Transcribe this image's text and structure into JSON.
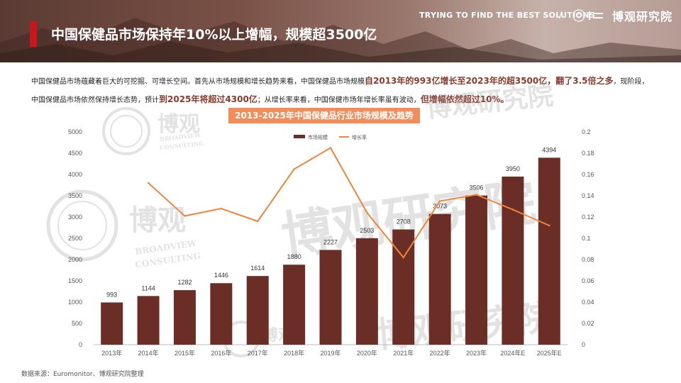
{
  "header": {
    "title": "中国保健品市场保持年10%以上增幅，规模超3500亿",
    "tagline": "TRYING TO FIND THE BEST SOLUTIONS",
    "slash": "/",
    "brand": "博观研究院"
  },
  "description": {
    "p1": "中国保健品市场蕴藏着巨大的可挖掘、可增长空间。首先从市场规模和增长趋势来看，中国保健品市场规模",
    "h1": "自2013年的993亿增长至2023年的超3500亿，翻了3.5倍之多",
    "p2": "，现阶段，中国保健品市场依然保持增长态势，预计",
    "h2": "到2025年将超过4300亿",
    "p3": "；从增长率来看，中国保健市场年增长率虽有波动，",
    "h3": "但增幅依然超过10%。"
  },
  "watermarks": {
    "large": "博观研究院",
    "logo_cn": "博观",
    "logo_en1": "BROADVIEW",
    "logo_en2": "CONSULTING"
  },
  "source": "数据来源：Euromonitor、博观研究院整理",
  "colors": {
    "bar": "#6b2e26",
    "line": "#f0843c",
    "title_bg": "#f18d5b",
    "highlight": "#8b3a2c"
  },
  "chart_data": {
    "type": "bar",
    "title": "2013-2025年中国保健品行业市场规模及趋势",
    "categories": [
      "2013年",
      "2014年",
      "2015年",
      "2016年",
      "2017年",
      "2018年",
      "2019年",
      "2020年",
      "2021年",
      "2022年",
      "2023年",
      "2024年E",
      "2025年E"
    ],
    "series": [
      {
        "name": "市场规模",
        "type": "bar",
        "axis": "left",
        "values": [
          993,
          1144,
          1282,
          1446,
          1614,
          1880,
          2227,
          2503,
          2708,
          3073,
          3506,
          3950,
          4394
        ]
      },
      {
        "name": "增长率",
        "type": "line",
        "axis": "right",
        "values": [
          null,
          0.152,
          0.121,
          0.128,
          0.116,
          0.165,
          0.185,
          0.124,
          0.082,
          0.135,
          0.141,
          0.127,
          0.112
        ]
      }
    ],
    "ylim_left": [
      0,
      5000
    ],
    "yticks_left": [
      "0",
      "500",
      "1000",
      "1500",
      "2000",
      "2500",
      "3000",
      "3500",
      "4000",
      "4500",
      "5000"
    ],
    "ylim_right": [
      0,
      0.2
    ],
    "yticks_right": [
      "0",
      "0.02",
      "0.04",
      "0.06",
      "0.08",
      "0.1",
      "0.12",
      "0.14",
      "0.16",
      "0.18",
      "0.2"
    ],
    "legend_position": "top-center",
    "grid": false
  }
}
